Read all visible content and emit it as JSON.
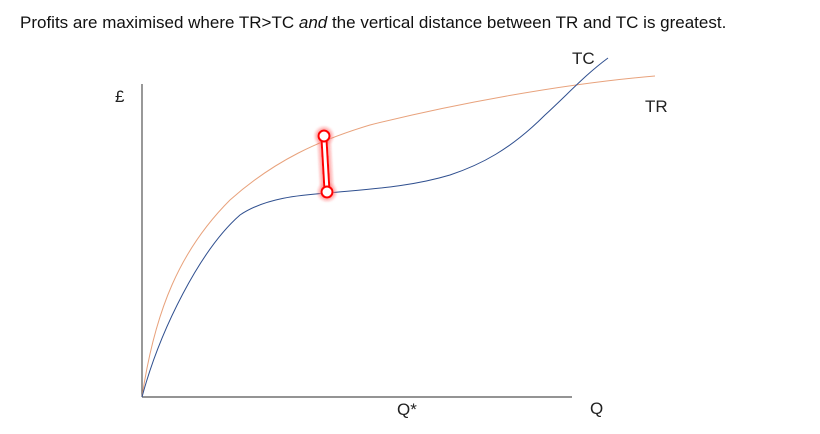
{
  "caption": {
    "part1": "Profits are maximised where TR>TC ",
    "emphasis": "and",
    "part2": " the vertical distance between TR and TC is greatest."
  },
  "labels": {
    "y_axis": "£",
    "x_axis": "Q",
    "q_star": "Q*",
    "tc": "TC",
    "tr": "TR"
  },
  "colors": {
    "tr_curve": "#e8a27c",
    "tc_curve": "#2f4f8f",
    "axis": "#555555",
    "highlight": "#ff0000"
  }
}
